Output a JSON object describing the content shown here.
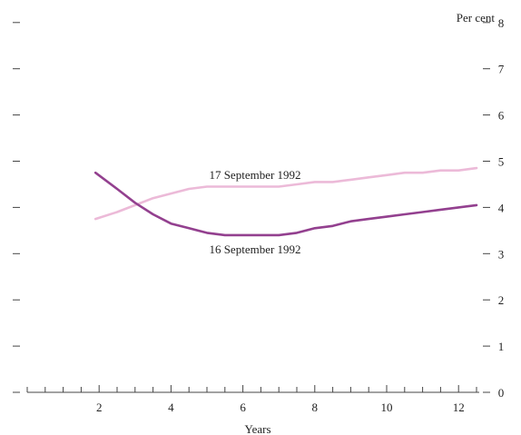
{
  "chart_data": {
    "type": "line",
    "title": "",
    "xlabel": "Years",
    "ylabel": "Per cent",
    "xlim": [
      0,
      12.5
    ],
    "ylim": [
      0,
      8
    ],
    "x_ticks": [
      2,
      4,
      6,
      8,
      10,
      12
    ],
    "y_ticks": [
      0,
      1,
      2,
      3,
      4,
      5,
      6,
      7,
      8
    ],
    "grid": false,
    "legend": "none (series labelled inline)",
    "series": [
      {
        "name": "17 September 1992",
        "color": "#ecbad8",
        "x": [
          1.9,
          2.5,
          3.0,
          3.5,
          4.0,
          4.5,
          5.0,
          5.5,
          6.0,
          6.5,
          7.0,
          7.5,
          8.0,
          8.5,
          9.0,
          9.5,
          10.0,
          10.5,
          11.0,
          11.5,
          12.0,
          12.5
        ],
        "values": [
          3.75,
          3.9,
          4.05,
          4.2,
          4.3,
          4.4,
          4.45,
          4.45,
          4.45,
          4.45,
          4.45,
          4.5,
          4.55,
          4.55,
          4.6,
          4.65,
          4.7,
          4.75,
          4.75,
          4.8,
          4.8,
          4.85
        ]
      },
      {
        "name": "16 September 1992",
        "color": "#93408f",
        "x": [
          1.9,
          2.5,
          3.0,
          3.5,
          4.0,
          4.5,
          5.0,
          5.5,
          6.0,
          6.5,
          7.0,
          7.5,
          8.0,
          8.5,
          9.0,
          9.5,
          10.0,
          10.5,
          11.0,
          11.5,
          12.0,
          12.5
        ],
        "values": [
          4.75,
          4.4,
          4.1,
          3.85,
          3.65,
          3.55,
          3.45,
          3.4,
          3.4,
          3.4,
          3.4,
          3.45,
          3.55,
          3.6,
          3.7,
          3.75,
          3.8,
          3.85,
          3.9,
          3.95,
          4.0,
          4.05
        ]
      }
    ]
  }
}
